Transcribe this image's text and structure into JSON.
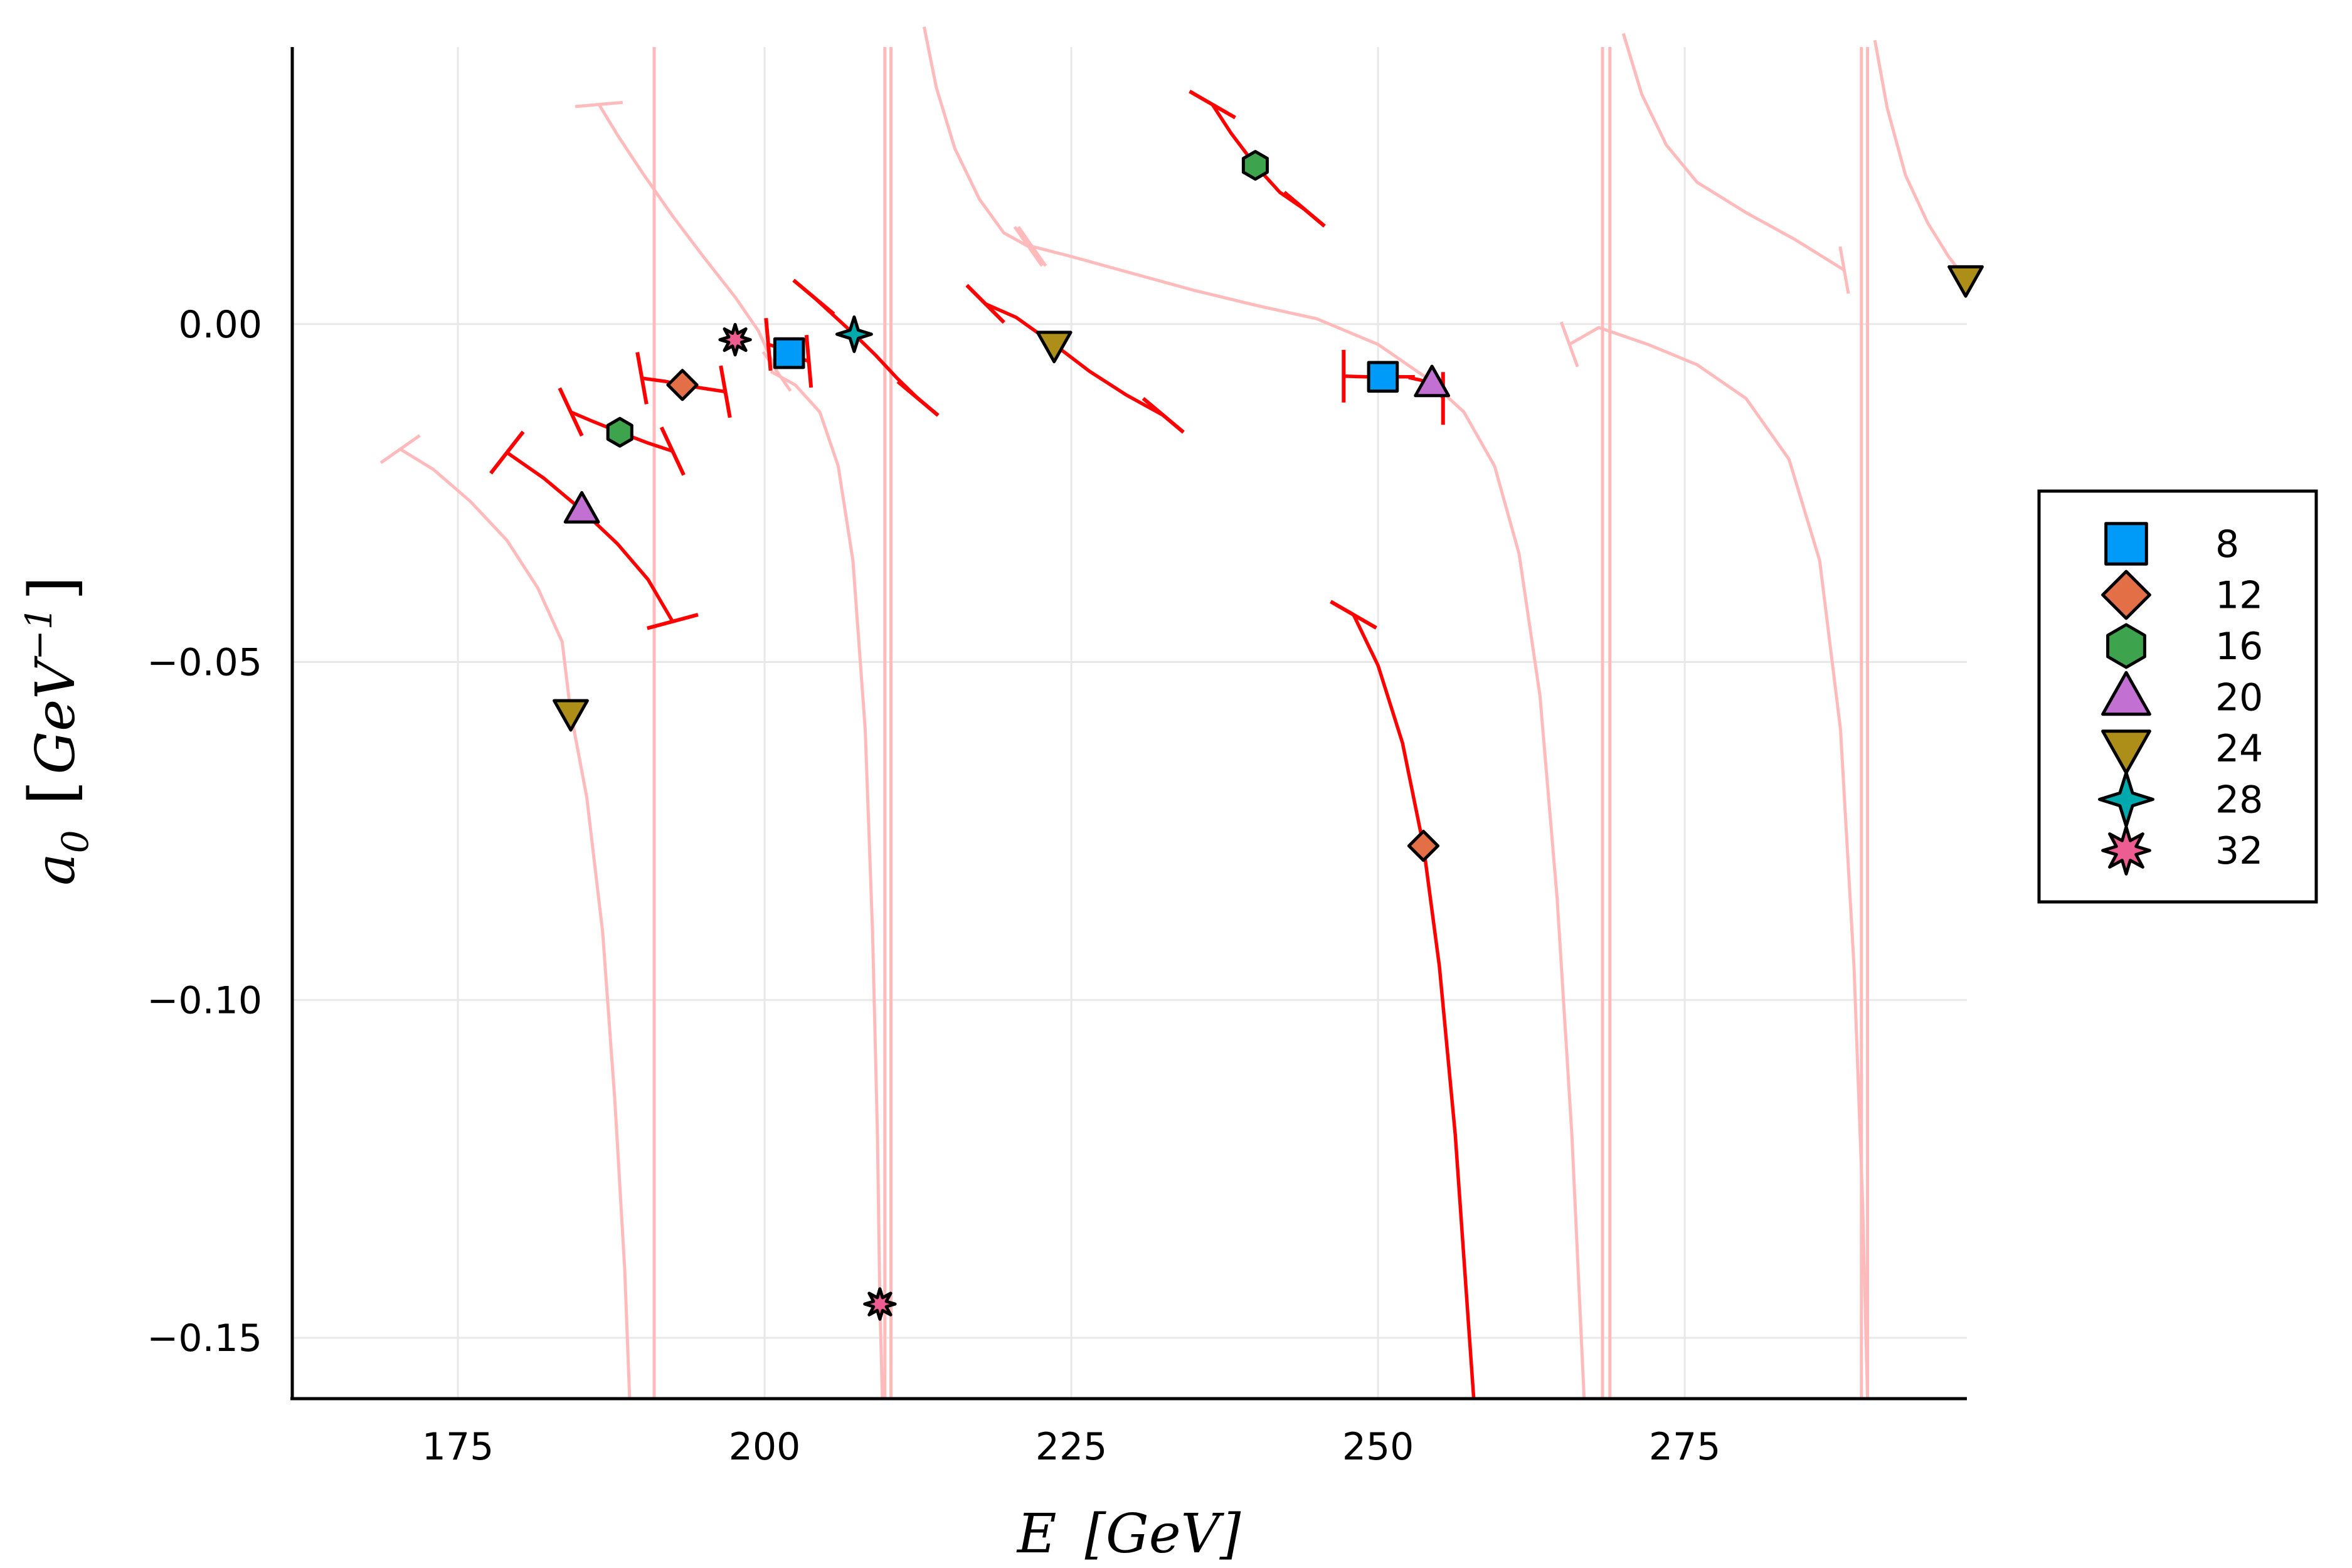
{
  "chart_data": {
    "type": "scatter",
    "xlabel": "E  [GeV]",
    "ylabel": "a_0  [GeV^-1]",
    "xlabel_parts": {
      "symbol": "E",
      "unit": "[GeV]"
    },
    "ylabel_parts": {
      "symbol": "a",
      "subscript": "0",
      "unit_open": "[",
      "unit": "GeV",
      "superscript": "−1",
      "unit_close": "]"
    },
    "xlim": [
      161.5,
      298
    ],
    "ylim": [
      -0.159,
      0.041
    ],
    "xticks": [
      175,
      200,
      225,
      250,
      275
    ],
    "xtick_labels": [
      "175",
      "200",
      "225",
      "250",
      "275"
    ],
    "yticks": [
      0.0,
      -0.05,
      -0.1,
      -0.15
    ],
    "ytick_labels": [
      "0.00",
      "−0.05",
      "−0.10",
      "−0.15"
    ],
    "grid": true,
    "legend_position": "right",
    "series": [
      {
        "name": "8",
        "marker": "square",
        "color": "#009af9",
        "points": [
          {
            "x": 202.0,
            "y": -0.0043
          },
          {
            "x": 250.4,
            "y": -0.0078
          }
        ]
      },
      {
        "name": "12",
        "marker": "diamond",
        "color": "#e26f46",
        "points": [
          {
            "x": 193.3,
            "y": -0.009
          },
          {
            "x": 253.7,
            "y": -0.0772
          }
        ]
      },
      {
        "name": "16",
        "marker": "hexagon",
        "color": "#3da44d",
        "points": [
          {
            "x": 188.2,
            "y": -0.016
          },
          {
            "x": 240.0,
            "y": 0.0235
          }
        ]
      },
      {
        "name": "20",
        "marker": "utriangle",
        "color": "#c271d2",
        "points": [
          {
            "x": 185.1,
            "y": -0.0275
          },
          {
            "x": 254.4,
            "y": -0.0088
          }
        ]
      },
      {
        "name": "24",
        "marker": "dtriangle",
        "color": "#ac8e18",
        "points": [
          {
            "x": 184.2,
            "y": -0.0575
          },
          {
            "x": 223.6,
            "y": -0.003
          },
          {
            "x": 297.9,
            "y": 0.0067
          }
        ]
      },
      {
        "name": "28",
        "marker": "star4",
        "color": "#00a9ad",
        "points": [
          {
            "x": 207.3,
            "y": -0.0015
          }
        ]
      },
      {
        "name": "32",
        "marker": "star8",
        "color": "#ed5d92",
        "points": [
          {
            "x": 197.6,
            "y": -0.0023
          },
          {
            "x": 209.4,
            "y": -0.145
          }
        ]
      }
    ],
    "curves": {
      "strong_color": "#ff0000",
      "faint_color": "#ffbbbb",
      "mid_color": "#f58a8a",
      "strong": [
        {
          "series": "20",
          "points": [
            [
              179.0,
              -0.019
            ],
            [
              182.0,
              -0.0228
            ],
            [
              185.1,
              -0.0275
            ],
            [
              188.0,
              -0.0325
            ],
            [
              190.5,
              -0.0378
            ],
            [
              192.5,
              -0.044
            ]
          ]
        },
        {
          "series": "16",
          "points": [
            [
              184.2,
              -0.013
            ],
            [
              186.0,
              -0.0144
            ],
            [
              188.2,
              -0.016
            ],
            [
              190.5,
              -0.0176
            ],
            [
              192.5,
              -0.0188
            ]
          ]
        },
        {
          "series": "12",
          "points": [
            [
              190.0,
              -0.008
            ],
            [
              192.0,
              -0.0085
            ],
            [
              193.3,
              -0.009
            ],
            [
              195.0,
              -0.0095
            ],
            [
              196.8,
              -0.01
            ]
          ]
        },
        {
          "series": "8",
          "points": [
            [
              200.3,
              -0.003
            ],
            [
              201.2,
              -0.0035
            ],
            [
              202.0,
              -0.0043
            ],
            [
              202.8,
              -0.005
            ],
            [
              203.6,
              -0.0055
            ]
          ]
        },
        {
          "series": "28",
          "points": [
            [
              204.0,
              0.004
            ],
            [
              205.5,
              0.0015
            ],
            [
              207.3,
              -0.0015
            ],
            [
              209.0,
              -0.0045
            ],
            [
              210.8,
              -0.008
            ],
            [
              212.5,
              -0.011
            ]
          ]
        },
        {
          "series": "24",
          "points": [
            [
              218.0,
              0.003
            ],
            [
              220.5,
              0.001
            ],
            [
              223.6,
              -0.003
            ],
            [
              226.5,
              -0.007
            ],
            [
              229.5,
              -0.0105
            ],
            [
              232.5,
              -0.0135
            ]
          ]
        },
        {
          "series": "16",
          "points": [
            [
              236.5,
              0.0325
            ],
            [
              238.0,
              0.0283
            ],
            [
              240.0,
              0.0235
            ],
            [
              242.0,
              0.0195
            ],
            [
              244.0,
              0.017
            ]
          ]
        },
        {
          "series": "8",
          "points": [
            [
              247.2,
              -0.0077
            ],
            [
              249.0,
              -0.0078
            ],
            [
              250.4,
              -0.0078
            ],
            [
              252.0,
              -0.0078
            ],
            [
              253.0,
              -0.0078
            ]
          ]
        },
        {
          "series": "20",
          "points": [
            [
              252.5,
              -0.0079
            ],
            [
              253.5,
              -0.0083
            ],
            [
              254.4,
              -0.0088
            ],
            [
              254.9,
              -0.0093
            ],
            [
              255.3,
              -0.011
            ]
          ]
        },
        {
          "series": "12",
          "points": [
            [
              248.0,
              -0.043
            ],
            [
              250.0,
              -0.0505
            ],
            [
              252.0,
              -0.062
            ],
            [
              253.7,
              -0.0772
            ],
            [
              255.0,
              -0.095
            ],
            [
              256.3,
              -0.12
            ],
            [
              257.8,
              -0.159
            ]
          ]
        }
      ],
      "faint": [
        {
          "points": [
            [
              170.3,
              -0.0185
            ],
            [
              173.0,
              -0.0215
            ],
            [
              176.0,
              -0.0262
            ],
            [
              179.0,
              -0.032
            ],
            [
              181.5,
              -0.039
            ],
            [
              183.5,
              -0.047
            ],
            [
              184.2,
              -0.0575
            ],
            [
              185.5,
              -0.07
            ],
            [
              186.8,
              -0.09
            ],
            [
              187.8,
              -0.115
            ],
            [
              188.6,
              -0.14
            ],
            [
              189.0,
              -0.159
            ]
          ]
        },
        {
          "points": [
            [
              186.5,
              0.0325
            ],
            [
              188.0,
              0.028
            ],
            [
              190.0,
              0.0225
            ],
            [
              192.5,
              0.016
            ],
            [
              195.0,
              0.01
            ],
            [
              197.6,
              0.004
            ],
            [
              199.5,
              -0.001
            ],
            [
              201.0,
              -0.007
            ]
          ]
        },
        {
          "points": [
            [
              200.5,
              -0.007
            ],
            [
              202.5,
              -0.009
            ],
            [
              204.5,
              -0.013
            ],
            [
              206.0,
              -0.021
            ],
            [
              207.2,
              -0.035
            ],
            [
              208.2,
              -0.06
            ],
            [
              208.8,
              -0.09
            ],
            [
              209.2,
              -0.12
            ],
            [
              209.4,
              -0.145
            ],
            [
              209.6,
              -0.159
            ]
          ]
        },
        {
          "points": [
            [
              213.0,
              0.044
            ],
            [
              214.0,
              0.035
            ],
            [
              215.5,
              0.026
            ],
            [
              217.5,
              0.0185
            ],
            [
              219.5,
              0.0135
            ],
            [
              221.5,
              0.0115
            ]
          ]
        },
        {
          "points": [
            [
              221.8,
              0.0115
            ],
            [
              225.0,
              0.01
            ],
            [
              230.0,
              0.0075
            ],
            [
              235.0,
              0.005
            ],
            [
              240.0,
              0.0028
            ],
            [
              245.0,
              0.0008
            ],
            [
              250.0,
              -0.003
            ],
            [
              254.0,
              -0.008
            ],
            [
              257.0,
              -0.013
            ],
            [
              259.5,
              -0.021
            ],
            [
              261.5,
              -0.034
            ],
            [
              263.2,
              -0.055
            ],
            [
              264.6,
              -0.085
            ],
            [
              265.8,
              -0.12
            ],
            [
              266.8,
              -0.159
            ]
          ]
        },
        {
          "points": [
            [
              265.6,
              -0.003
            ],
            [
              268.0,
              -0.0005
            ],
            [
              272.0,
              -0.003
            ],
            [
              276.0,
              -0.006
            ],
            [
              280.0,
              -0.011
            ],
            [
              283.5,
              -0.02
            ],
            [
              286.0,
              -0.035
            ],
            [
              287.7,
              -0.06
            ],
            [
              288.8,
              -0.095
            ],
            [
              289.5,
              -0.13
            ],
            [
              289.9,
              -0.159
            ]
          ]
        },
        {
          "points": [
            [
              270.0,
              0.043
            ],
            [
              271.5,
              0.034
            ],
            [
              273.5,
              0.0265
            ],
            [
              276.0,
              0.021
            ],
            [
              280.0,
              0.0165
            ],
            [
              284.0,
              0.0125
            ],
            [
              288.0,
              0.008
            ]
          ]
        },
        {
          "points": [
            [
              290.5,
              0.042
            ],
            [
              291.5,
              0.032
            ],
            [
              293.0,
              0.022
            ],
            [
              294.8,
              0.015
            ],
            [
              296.5,
              0.01
            ],
            [
              297.9,
              0.0067
            ]
          ]
        }
      ],
      "verticals": [
        191.0,
        209.8,
        210.3,
        268.3,
        268.9,
        289.4,
        289.9
      ]
    },
    "error_caps": {
      "strong": [
        {
          "x": 179.0,
          "y": -0.019,
          "angle": -52
        },
        {
          "x": 192.5,
          "y": -0.044,
          "angle": -15
        },
        {
          "x": 184.2,
          "y": -0.013,
          "angle": 65
        },
        {
          "x": 192.5,
          "y": -0.0188,
          "angle": 65
        },
        {
          "x": 190.0,
          "y": -0.008,
          "angle": 80
        },
        {
          "x": 196.8,
          "y": -0.01,
          "angle": 80
        },
        {
          "x": 200.3,
          "y": -0.003,
          "angle": 85
        },
        {
          "x": 203.6,
          "y": -0.0055,
          "angle": 85
        },
        {
          "x": 204.0,
          "y": 0.004,
          "angle": 40
        },
        {
          "x": 212.5,
          "y": -0.011,
          "angle": 40
        },
        {
          "x": 218.0,
          "y": 0.003,
          "angle": 45
        },
        {
          "x": 232.5,
          "y": -0.0135,
          "angle": 40
        },
        {
          "x": 236.5,
          "y": 0.0325,
          "angle": 30
        },
        {
          "x": 244.0,
          "y": 0.017,
          "angle": 40
        },
        {
          "x": 247.2,
          "y": -0.0077,
          "angle": 90
        },
        {
          "x": 255.3,
          "y": -0.011,
          "angle": 90
        },
        {
          "x": 248.0,
          "y": -0.043,
          "angle": 30
        }
      ],
      "faint": [
        {
          "x": 170.3,
          "y": -0.0185,
          "angle": -35
        },
        {
          "x": 186.5,
          "y": 0.0325,
          "angle": -5
        },
        {
          "x": 201.0,
          "y": -0.007,
          "angle": 55
        },
        {
          "x": 221.5,
          "y": 0.0115,
          "angle": 55
        },
        {
          "x": 221.8,
          "y": 0.0115,
          "angle": 55
        },
        {
          "x": 265.6,
          "y": -0.003,
          "angle": 70
        },
        {
          "x": 288.0,
          "y": 0.008,
          "angle": 80
        }
      ]
    }
  }
}
